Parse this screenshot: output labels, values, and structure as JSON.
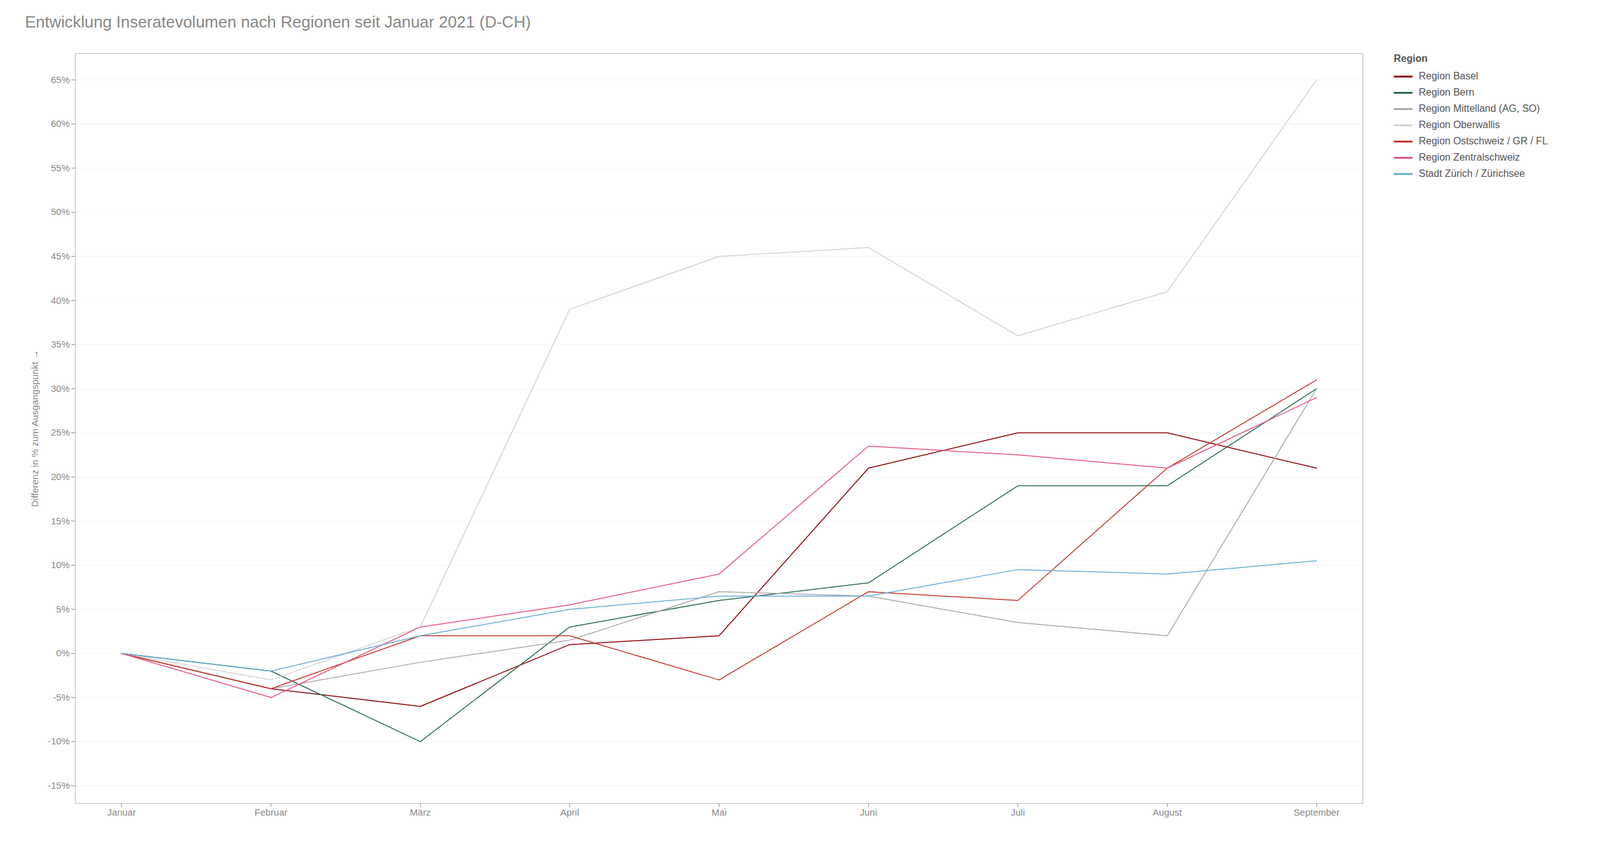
{
  "chart_data": {
    "type": "line",
    "title": "Entwicklung Inseratevolumen nach Regionen seit Januar 2021 (D-CH)",
    "ylabel": "Differenz in % zum Ausgangspunkt",
    "legend_title": "Region",
    "categories": [
      "Januar",
      "Februar",
      "März",
      "April",
      "Mai",
      "Juni",
      "Juli",
      "August",
      "September"
    ],
    "series": [
      {
        "name": "Region Basel",
        "color": "#8b0000",
        "values": [
          0.0,
          -0.04,
          -0.06,
          0.01,
          0.02,
          0.21,
          0.25,
          0.25,
          0.21
        ]
      },
      {
        "name": "Region Bern",
        "color": "#2d6a4f",
        "values": [
          0.0,
          -0.02,
          -0.1,
          0.03,
          0.06,
          0.08,
          0.19,
          0.19,
          0.3
        ]
      },
      {
        "name": "Region Mittelland (AG, SO)",
        "color": "#aaaaaa",
        "values": [
          0.0,
          -0.04,
          -0.01,
          0.015,
          0.07,
          0.065,
          0.035,
          0.02,
          0.3
        ]
      },
      {
        "name": "Region Oberwallis",
        "color": "#d3d3d3",
        "values": [
          0.0,
          -0.03,
          0.03,
          0.39,
          0.45,
          0.46,
          0.36,
          0.41,
          0.65
        ]
      },
      {
        "name": "Region Ostschweiz / GR / FL",
        "color": "#c0392b",
        "values": [
          0.0,
          -0.04,
          0.02,
          0.02,
          -0.03,
          0.07,
          0.06,
          0.21,
          0.31
        ]
      },
      {
        "name": "Region Zentralschweiz",
        "color": "#e75480",
        "values": [
          0.0,
          -0.05,
          0.03,
          0.055,
          0.09,
          0.235,
          0.225,
          0.21,
          0.29
        ]
      },
      {
        "name": "Stadt Zürich / Zürichsee",
        "color": "#6baed6",
        "values": [
          0.0,
          -0.02,
          0.02,
          0.05,
          0.065,
          0.065,
          0.095,
          0.09,
          0.105
        ]
      }
    ],
    "ylim": [
      -0.17,
      0.68
    ],
    "yticks": [
      {
        "value": -0.15,
        "label": "-15%"
      },
      {
        "value": -0.1,
        "label": "-10%"
      },
      {
        "value": -0.05,
        "label": "-5%"
      },
      {
        "value": 0.0,
        "label": "0%"
      },
      {
        "value": 0.05,
        "label": "5%"
      },
      {
        "value": 0.1,
        "label": "10%"
      },
      {
        "value": 0.15,
        "label": "15%"
      },
      {
        "value": 0.2,
        "label": "20%"
      },
      {
        "value": 0.25,
        "label": "25%"
      },
      {
        "value": 0.3,
        "label": "30%"
      },
      {
        "value": 0.35,
        "label": "35%"
      },
      {
        "value": 0.4,
        "label": "40%"
      },
      {
        "value": 0.45,
        "label": "45%"
      },
      {
        "value": 0.5,
        "label": "50%"
      },
      {
        "value": 0.55,
        "label": "55%"
      },
      {
        "value": 0.6,
        "label": "60%"
      },
      {
        "value": 0.65,
        "label": "65%"
      }
    ],
    "grid": true,
    "legend": "upper right"
  }
}
